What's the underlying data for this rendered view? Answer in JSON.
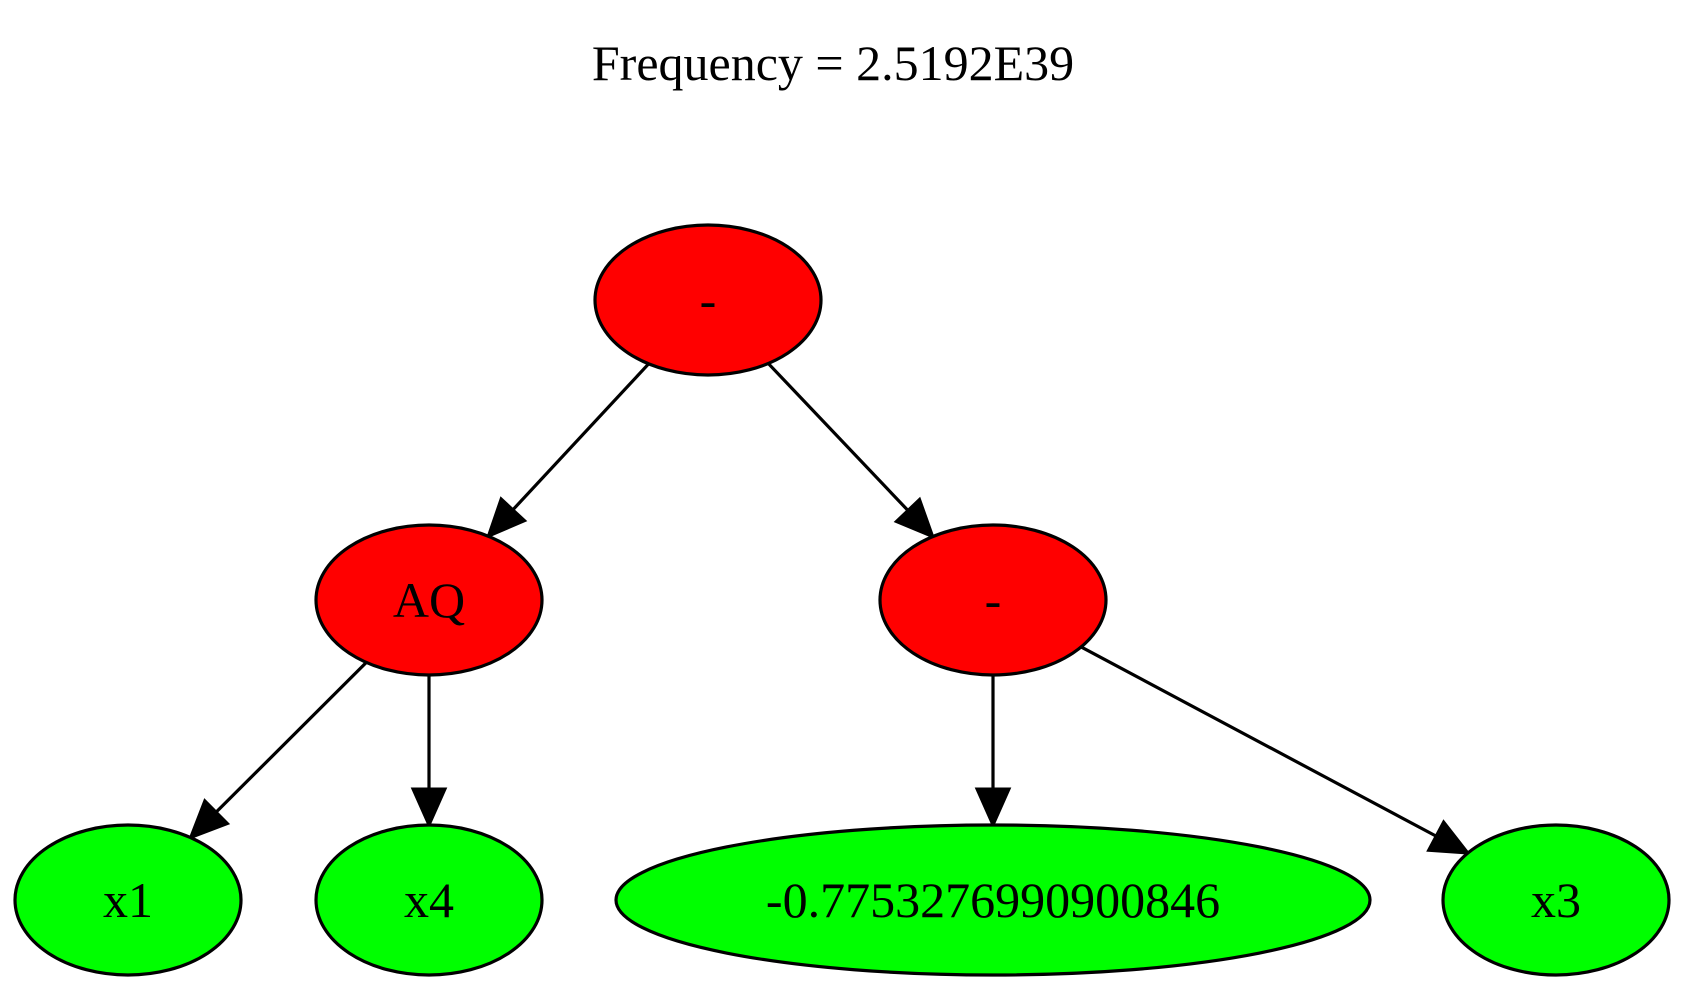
{
  "title": "Frequency = 2.5192E39",
  "colors": {
    "operator": "#ff0000",
    "leaf": "#00ff00",
    "stroke": "#000000",
    "background": "#ffffff"
  },
  "nodes": [
    {
      "id": "root",
      "label": "-",
      "kind": "operator"
    },
    {
      "id": "aq",
      "label": "AQ",
      "kind": "operator"
    },
    {
      "id": "minus2",
      "label": "-",
      "kind": "operator"
    },
    {
      "id": "x1",
      "label": "x1",
      "kind": "leaf"
    },
    {
      "id": "x4",
      "label": "x4",
      "kind": "leaf"
    },
    {
      "id": "const",
      "label": "-0.7753276990900846",
      "kind": "leaf"
    },
    {
      "id": "x3",
      "label": "x3",
      "kind": "leaf"
    }
  ],
  "edges": [
    {
      "from": "root",
      "to": "aq"
    },
    {
      "from": "root",
      "to": "minus2"
    },
    {
      "from": "aq",
      "to": "x1"
    },
    {
      "from": "aq",
      "to": "x4"
    },
    {
      "from": "minus2",
      "to": "const"
    },
    {
      "from": "minus2",
      "to": "x3"
    }
  ]
}
